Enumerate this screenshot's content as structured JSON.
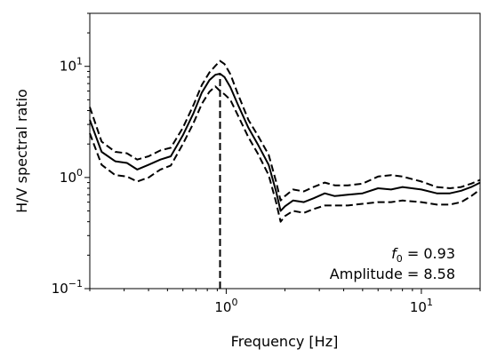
{
  "chart_data": {
    "type": "line",
    "xlabel": "Frequency [Hz]",
    "ylabel": "H/V spectral ratio",
    "xscale": "log",
    "yscale": "log",
    "xlim": [
      0.2,
      20
    ],
    "ylim": [
      0.1,
      30
    ],
    "x_ticks": [
      {
        "value": 1,
        "base": "10",
        "exp": "0"
      },
      {
        "value": 10,
        "base": "10",
        "exp": "1"
      }
    ],
    "y_ticks": [
      {
        "value": 0.1,
        "base": "10",
        "exp": "−1"
      },
      {
        "value": 1,
        "base": "10",
        "exp": "0"
      },
      {
        "value": 10,
        "base": "10",
        "exp": "1"
      }
    ],
    "grid": false,
    "series": [
      {
        "role": "median",
        "style": "solid",
        "x": [
          0.2,
          0.23,
          0.27,
          0.31,
          0.35,
          0.4,
          0.46,
          0.52,
          0.6,
          0.68,
          0.75,
          0.82,
          0.88,
          0.93,
          0.98,
          1.05,
          1.15,
          1.3,
          1.45,
          1.65,
          1.8,
          1.9,
          2.0,
          2.2,
          2.5,
          2.8,
          3.2,
          3.6,
          4.2,
          5.0,
          6.0,
          7.0,
          8.0,
          10.0,
          12.0,
          14.0,
          16.0,
          18.0,
          20.0
        ],
        "y": [
          3.3,
          1.7,
          1.4,
          1.35,
          1.18,
          1.3,
          1.45,
          1.55,
          2.4,
          3.8,
          5.8,
          7.5,
          8.4,
          8.58,
          8.0,
          6.5,
          4.5,
          2.8,
          2.0,
          1.3,
          0.75,
          0.5,
          0.55,
          0.62,
          0.6,
          0.65,
          0.72,
          0.68,
          0.7,
          0.72,
          0.8,
          0.78,
          0.82,
          0.78,
          0.72,
          0.72,
          0.76,
          0.82,
          0.9
        ]
      },
      {
        "role": "upper",
        "style": "dashed",
        "x": [
          0.2,
          0.23,
          0.27,
          0.31,
          0.35,
          0.4,
          0.46,
          0.52,
          0.6,
          0.68,
          0.75,
          0.82,
          0.88,
          0.93,
          0.98,
          1.05,
          1.15,
          1.3,
          1.45,
          1.65,
          1.8,
          1.9,
          2.0,
          2.2,
          2.5,
          2.8,
          3.2,
          3.6,
          4.2,
          5.0,
          6.0,
          7.0,
          8.0,
          10.0,
          12.0,
          14.0,
          16.0,
          18.0,
          20.0
        ],
        "y": [
          4.3,
          2.1,
          1.7,
          1.65,
          1.45,
          1.55,
          1.75,
          1.85,
          2.8,
          4.5,
          6.8,
          8.8,
          10.1,
          11.2,
          10.5,
          8.5,
          5.6,
          3.3,
          2.4,
          1.6,
          0.92,
          0.62,
          0.68,
          0.78,
          0.75,
          0.82,
          0.9,
          0.85,
          0.85,
          0.88,
          1.02,
          1.05,
          1.02,
          0.92,
          0.82,
          0.8,
          0.82,
          0.88,
          0.95
        ]
      },
      {
        "role": "lower",
        "style": "dashed",
        "x": [
          0.2,
          0.23,
          0.27,
          0.31,
          0.35,
          0.4,
          0.46,
          0.52,
          0.6,
          0.68,
          0.75,
          0.82,
          0.88,
          0.93,
          0.98,
          1.05,
          1.15,
          1.3,
          1.45,
          1.65,
          1.8,
          1.9,
          2.0,
          2.2,
          2.5,
          2.8,
          3.2,
          3.6,
          4.2,
          5.0,
          6.0,
          7.0,
          8.0,
          10.0,
          12.0,
          14.0,
          16.0,
          18.0,
          20.0
        ],
        "y": [
          2.5,
          1.3,
          1.05,
          1.02,
          0.92,
          1.0,
          1.18,
          1.28,
          2.0,
          3.1,
          4.6,
          5.9,
          6.6,
          6.0,
          5.6,
          5.0,
          3.6,
          2.3,
          1.65,
          1.05,
          0.6,
          0.4,
          0.45,
          0.5,
          0.48,
          0.52,
          0.56,
          0.56,
          0.56,
          0.58,
          0.6,
          0.6,
          0.62,
          0.6,
          0.57,
          0.57,
          0.6,
          0.68,
          0.78
        ]
      }
    ],
    "peak_marker": {
      "x": 0.93,
      "y_top": 8.58,
      "style": "dashed"
    },
    "annotation": {
      "f0_symbol": "f",
      "f0_subscript": "0",
      "f0_text": " = 0.93",
      "amplitude_text": "Amplitude = 8.58"
    }
  }
}
